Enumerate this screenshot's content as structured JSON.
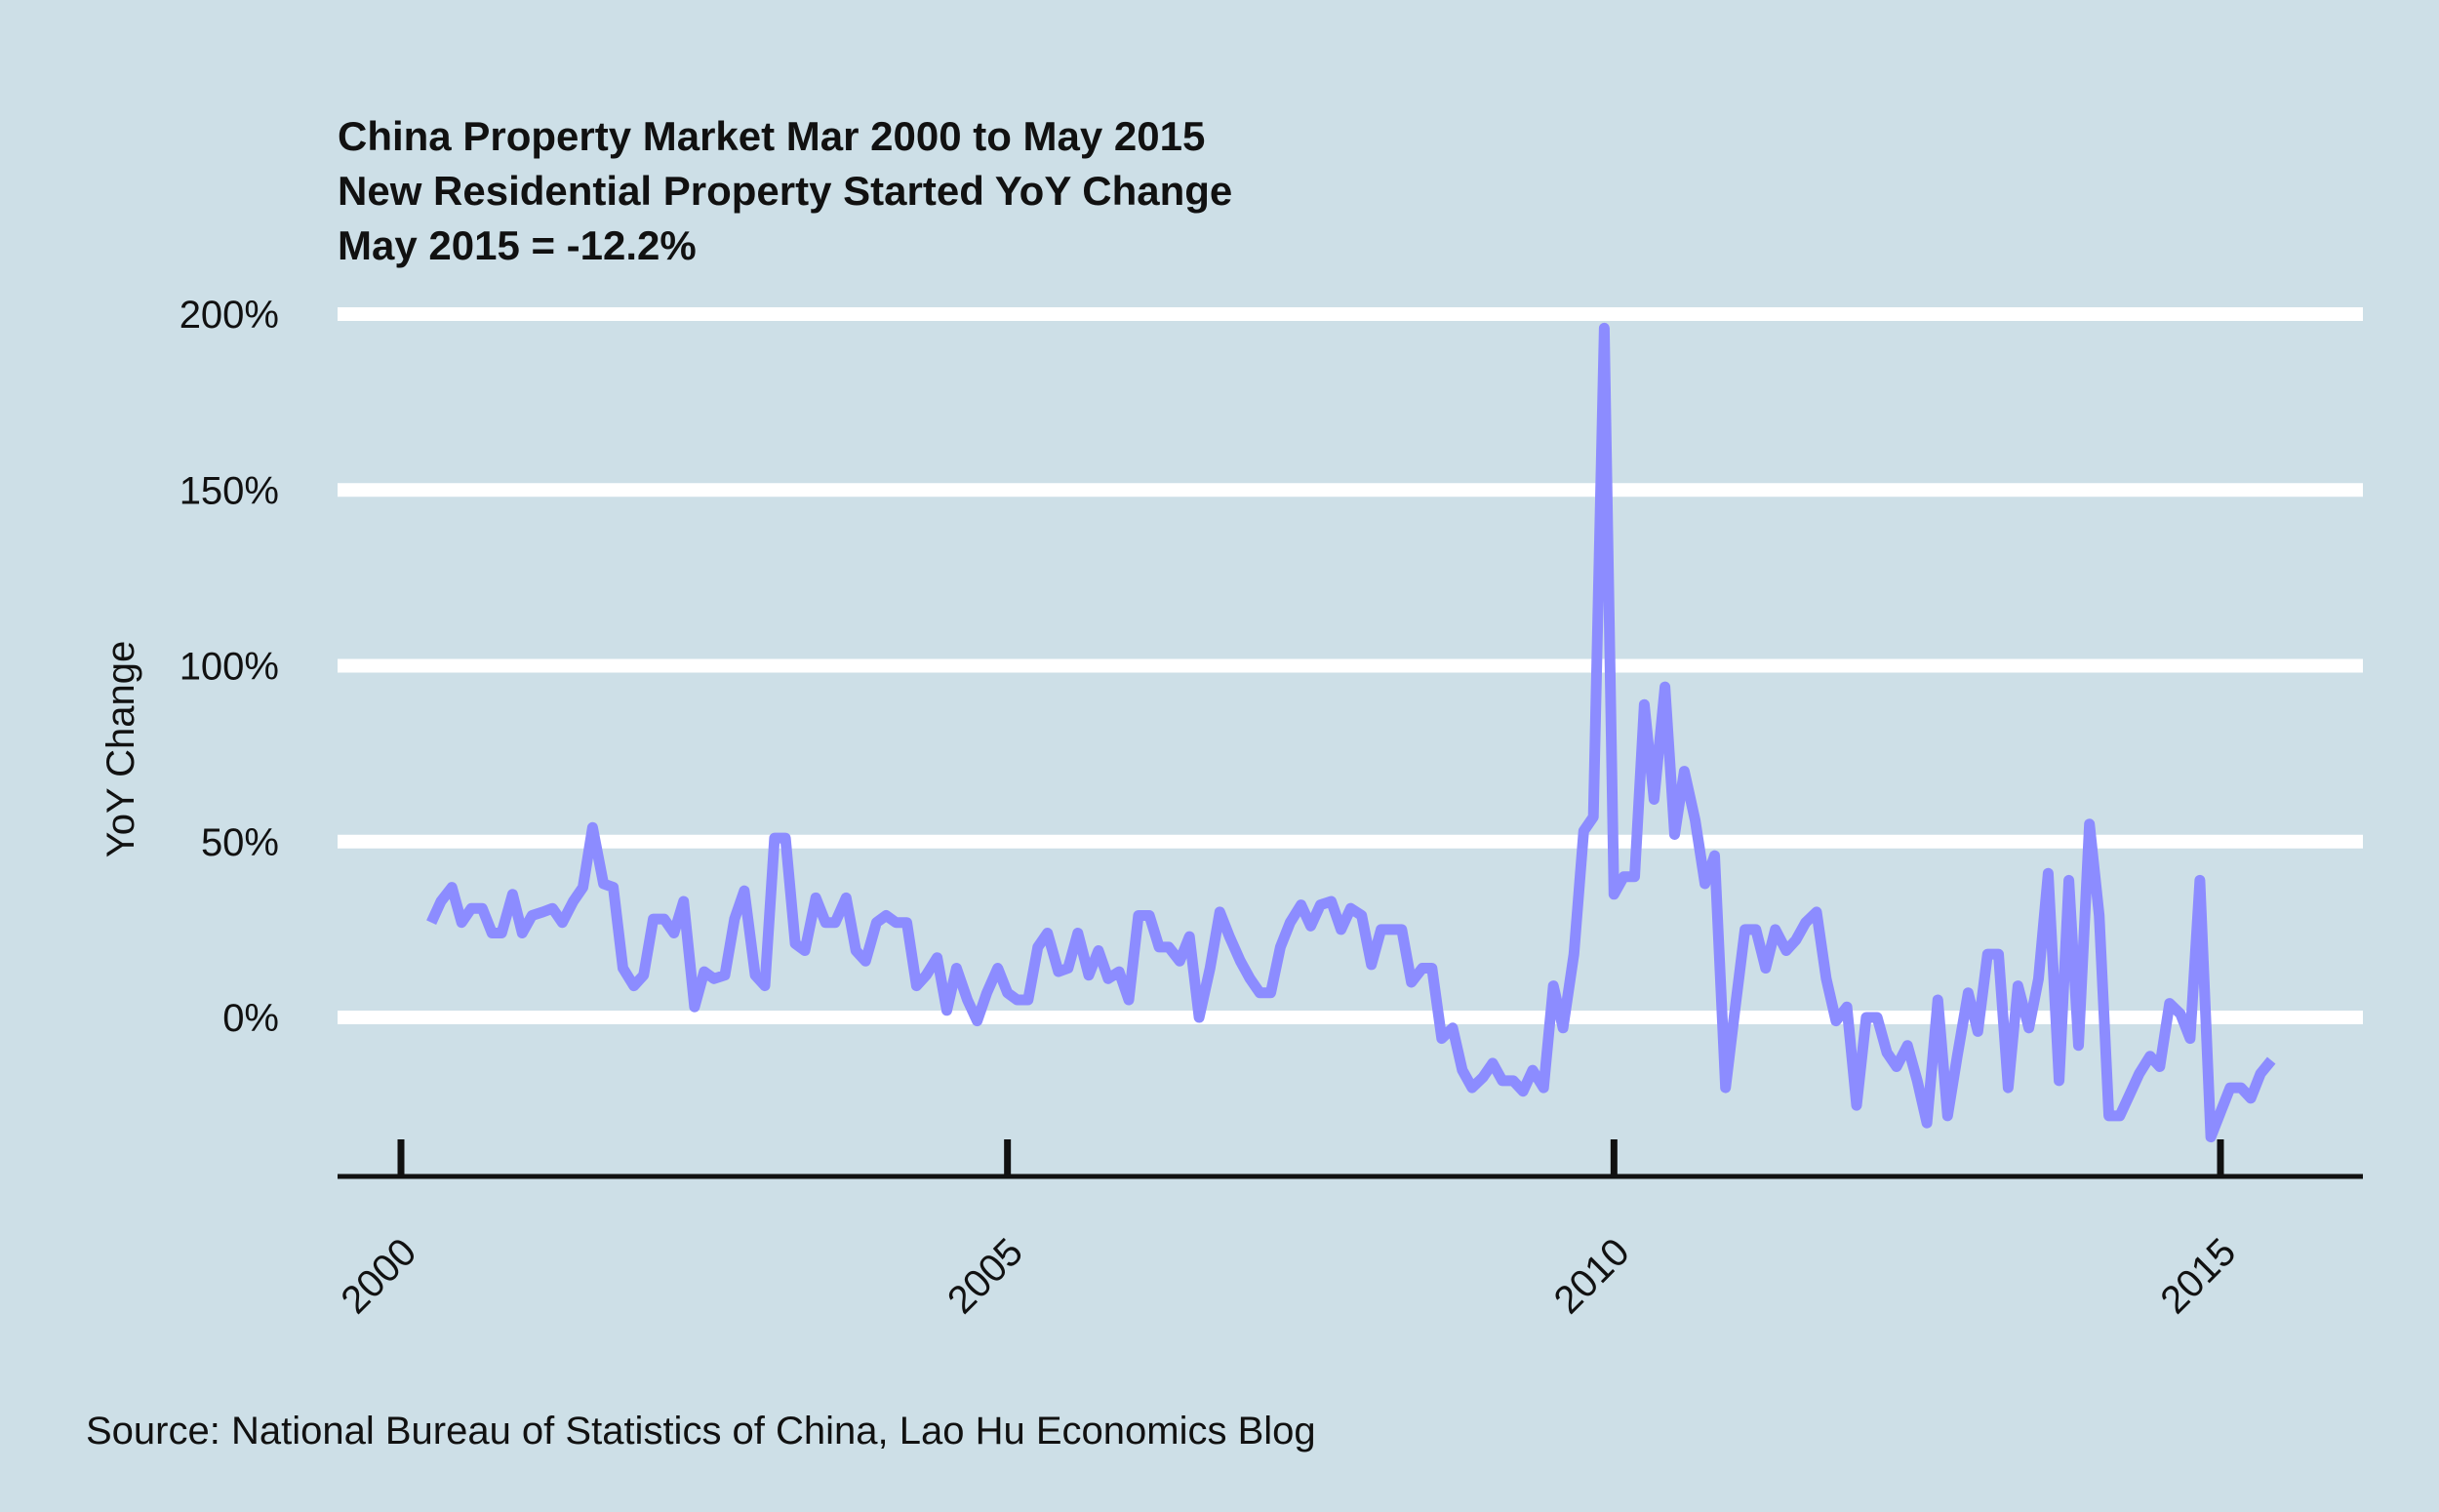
{
  "chart_data": {
    "type": "line",
    "title": [
      "China Property Market Mar 2000 to May 2015",
      "New Residential Property Started YoY Change",
      "May 2015 = -12.2%"
    ],
    "xlabel": "",
    "ylabel": "YoY Change",
    "source": "Source: National Bureau of Statistics of China, Lao Hu Economics Blog",
    "xlim": [
      1999.5,
      2016.2
    ],
    "ylim": [
      -45,
      200
    ],
    "x_ticks": [
      {
        "value": 2000,
        "label": "2000"
      },
      {
        "value": 2005,
        "label": "2005"
      },
      {
        "value": 2010,
        "label": "2010"
      },
      {
        "value": 2015,
        "label": "2015"
      }
    ],
    "y_ticks": [
      {
        "value": 0,
        "label": "0%"
      },
      {
        "value": 50,
        "label": "50%"
      },
      {
        "value": 100,
        "label": "100%"
      },
      {
        "value": 150,
        "label": "150%"
      },
      {
        "value": 200,
        "label": "200%"
      }
    ],
    "grid": "horizontal",
    "colors": {
      "background": "#cddfe7",
      "line": "#8c8cff",
      "grid": "#ffffff",
      "axis": "#111111"
    },
    "series": [
      {
        "values": [
          [
            2000.25,
            27
          ],
          [
            2000.33,
            33
          ],
          [
            2000.42,
            37
          ],
          [
            2000.5,
            27
          ],
          [
            2000.58,
            31
          ],
          [
            2000.67,
            31
          ],
          [
            2000.75,
            24
          ],
          [
            2000.83,
            24
          ],
          [
            2000.92,
            35
          ],
          [
            2001.0,
            24
          ],
          [
            2001.08,
            29
          ],
          [
            2001.17,
            30
          ],
          [
            2001.25,
            31
          ],
          [
            2001.33,
            27
          ],
          [
            2001.42,
            33
          ],
          [
            2001.5,
            37
          ],
          [
            2001.58,
            54
          ],
          [
            2001.67,
            38
          ],
          [
            2001.75,
            37
          ],
          [
            2001.83,
            14
          ],
          [
            2001.92,
            9
          ],
          [
            2002.0,
            12
          ],
          [
            2002.08,
            28
          ],
          [
            2002.17,
            28
          ],
          [
            2002.25,
            24
          ],
          [
            2002.33,
            33
          ],
          [
            2002.42,
            3
          ],
          [
            2002.5,
            13
          ],
          [
            2002.58,
            11
          ],
          [
            2002.67,
            12
          ],
          [
            2002.75,
            28
          ],
          [
            2002.83,
            36
          ],
          [
            2002.92,
            12
          ],
          [
            2003.0,
            9
          ],
          [
            2003.08,
            51
          ],
          [
            2003.17,
            51
          ],
          [
            2003.25,
            21
          ],
          [
            2003.33,
            19
          ],
          [
            2003.42,
            34
          ],
          [
            2003.5,
            27
          ],
          [
            2003.58,
            27
          ],
          [
            2003.67,
            34
          ],
          [
            2003.75,
            19
          ],
          [
            2003.83,
            16
          ],
          [
            2003.92,
            27
          ],
          [
            2004.0,
            29
          ],
          [
            2004.08,
            27
          ],
          [
            2004.17,
            27
          ],
          [
            2004.25,
            9
          ],
          [
            2004.33,
            12
          ],
          [
            2004.42,
            17
          ],
          [
            2004.5,
            2
          ],
          [
            2004.58,
            14
          ],
          [
            2004.67,
            5
          ],
          [
            2004.75,
            -1
          ],
          [
            2004.83,
            7
          ],
          [
            2004.92,
            14
          ],
          [
            2005.0,
            7
          ],
          [
            2005.08,
            5
          ],
          [
            2005.17,
            5
          ],
          [
            2005.25,
            20
          ],
          [
            2005.33,
            24
          ],
          [
            2005.42,
            13
          ],
          [
            2005.5,
            14
          ],
          [
            2005.58,
            24
          ],
          [
            2005.67,
            12
          ],
          [
            2005.75,
            19
          ],
          [
            2005.83,
            11
          ],
          [
            2005.92,
            13
          ],
          [
            2006.0,
            5
          ],
          [
            2006.08,
            29
          ],
          [
            2006.17,
            29
          ],
          [
            2006.25,
            20
          ],
          [
            2006.33,
            20
          ],
          [
            2006.42,
            16
          ],
          [
            2006.5,
            23
          ],
          [
            2006.58,
            0
          ],
          [
            2006.67,
            14
          ],
          [
            2006.75,
            30
          ],
          [
            2006.83,
            23
          ],
          [
            2006.92,
            16
          ],
          [
            2007.0,
            11
          ],
          [
            2007.08,
            7
          ],
          [
            2007.17,
            7
          ],
          [
            2007.25,
            20
          ],
          [
            2007.33,
            27
          ],
          [
            2007.42,
            32
          ],
          [
            2007.5,
            26
          ],
          [
            2007.58,
            32
          ],
          [
            2007.67,
            33
          ],
          [
            2007.75,
            25
          ],
          [
            2007.83,
            31
          ],
          [
            2007.92,
            29
          ],
          [
            2008.0,
            15
          ],
          [
            2008.08,
            25
          ],
          [
            2008.17,
            25
          ],
          [
            2008.25,
            25
          ],
          [
            2008.33,
            10
          ],
          [
            2008.42,
            14
          ],
          [
            2008.5,
            14
          ],
          [
            2008.58,
            -6
          ],
          [
            2008.67,
            -3
          ],
          [
            2008.75,
            -15
          ],
          [
            2008.83,
            -20
          ],
          [
            2008.92,
            -17
          ],
          [
            2009.0,
            -13
          ],
          [
            2009.08,
            -18
          ],
          [
            2009.17,
            -18
          ],
          [
            2009.25,
            -21
          ],
          [
            2009.33,
            -15
          ],
          [
            2009.42,
            -20
          ],
          [
            2009.5,
            9
          ],
          [
            2009.58,
            -3
          ],
          [
            2009.67,
            18
          ],
          [
            2009.75,
            53
          ],
          [
            2009.83,
            57
          ],
          [
            2009.92,
            196
          ],
          [
            2010.0,
            35
          ],
          [
            2010.08,
            40
          ],
          [
            2010.17,
            40
          ],
          [
            2010.25,
            89
          ],
          [
            2010.33,
            62
          ],
          [
            2010.42,
            94
          ],
          [
            2010.5,
            52
          ],
          [
            2010.58,
            70
          ],
          [
            2010.67,
            56
          ],
          [
            2010.75,
            38
          ],
          [
            2010.83,
            46
          ],
          [
            2010.92,
            -20
          ],
          [
            2011.0,
            3
          ],
          [
            2011.08,
            25
          ],
          [
            2011.17,
            25
          ],
          [
            2011.25,
            14
          ],
          [
            2011.33,
            25
          ],
          [
            2011.42,
            19
          ],
          [
            2011.5,
            22
          ],
          [
            2011.58,
            27
          ],
          [
            2011.67,
            30
          ],
          [
            2011.75,
            11
          ],
          [
            2011.83,
            -1
          ],
          [
            2011.92,
            3
          ],
          [
            2012.0,
            -25
          ],
          [
            2012.08,
            0
          ],
          [
            2012.17,
            0
          ],
          [
            2012.25,
            -10
          ],
          [
            2012.33,
            -14
          ],
          [
            2012.42,
            -8
          ],
          [
            2012.5,
            -18
          ],
          [
            2012.58,
            -30
          ],
          [
            2012.67,
            5
          ],
          [
            2012.75,
            -28
          ],
          [
            2012.83,
            -11
          ],
          [
            2012.92,
            7
          ],
          [
            2013.0,
            -4
          ],
          [
            2013.08,
            18
          ],
          [
            2013.17,
            18
          ],
          [
            2013.25,
            -20
          ],
          [
            2013.33,
            9
          ],
          [
            2013.42,
            -3
          ],
          [
            2013.5,
            11
          ],
          [
            2013.58,
            41
          ],
          [
            2013.67,
            -18
          ],
          [
            2013.75,
            39
          ],
          [
            2013.83,
            -8
          ],
          [
            2013.92,
            55
          ],
          [
            2014.0,
            29
          ],
          [
            2014.08,
            -28
          ],
          [
            2014.17,
            -28
          ],
          [
            2014.25,
            -22
          ],
          [
            2014.33,
            -16
          ],
          [
            2014.42,
            -11
          ],
          [
            2014.5,
            -14
          ],
          [
            2014.58,
            4
          ],
          [
            2014.67,
            1
          ],
          [
            2014.75,
            -6
          ],
          [
            2014.83,
            39
          ],
          [
            2014.92,
            -34
          ],
          [
            2015.0,
            -27
          ],
          [
            2015.08,
            -20
          ],
          [
            2015.17,
            -20
          ],
          [
            2015.25,
            -23
          ],
          [
            2015.33,
            -16
          ],
          [
            2015.42,
            -12.2
          ]
        ]
      }
    ]
  }
}
